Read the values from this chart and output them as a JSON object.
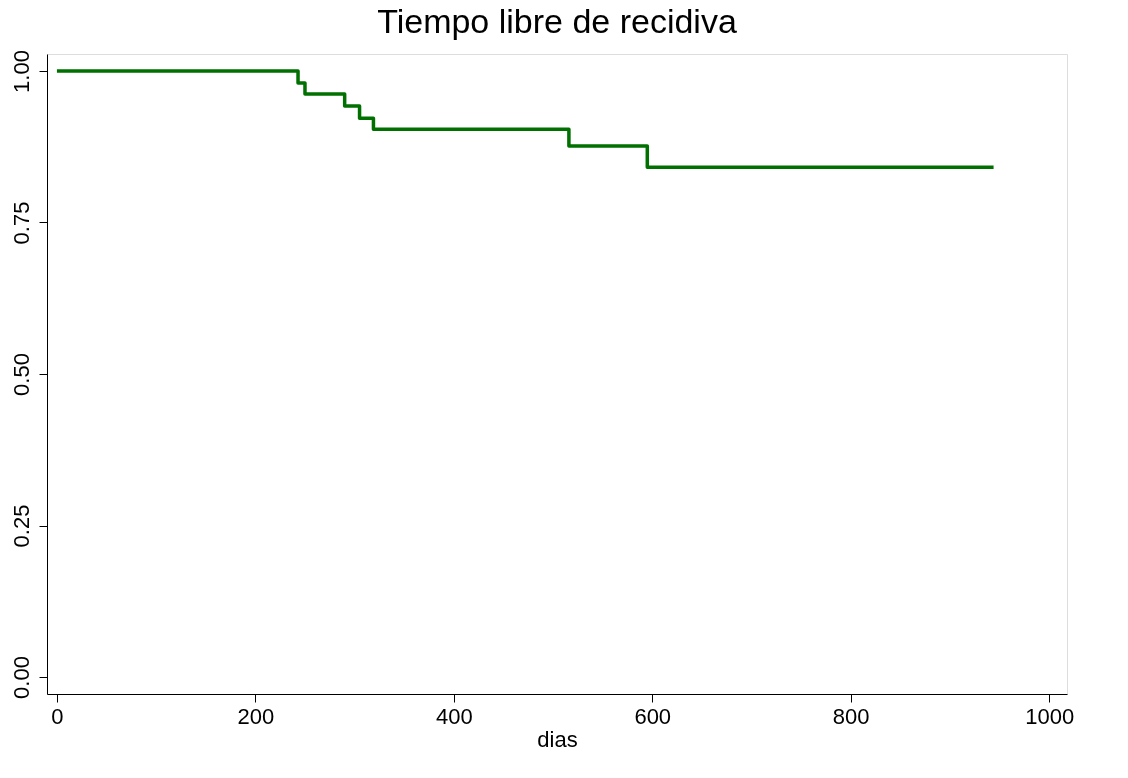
{
  "chart_data": {
    "type": "step",
    "title": "Tiempo libre de recidiva",
    "xlabel": "dias",
    "x": [
      0,
      243,
      250,
      290,
      305,
      319,
      516,
      595,
      944
    ],
    "series": [
      {
        "color": "#007000",
        "values": [
          1.0,
          0.98,
          0.962,
          0.942,
          0.922,
          0.904,
          0.876,
          0.841,
          0.841
        ]
      }
    ],
    "xlim": [
      -10,
      1018
    ],
    "ylim": [
      -0.028,
      1.028
    ],
    "xticks": [
      0,
      200,
      400,
      600,
      800,
      1000
    ],
    "yticks": [
      {
        "value": 0,
        "label": "0.00"
      },
      {
        "value": 0.25,
        "label": "0.25"
      },
      {
        "value": 0.5,
        "label": "0.50"
      },
      {
        "value": 0.75,
        "label": "0.75"
      },
      {
        "value": 1,
        "label": "1.00"
      }
    ],
    "grid": false
  }
}
